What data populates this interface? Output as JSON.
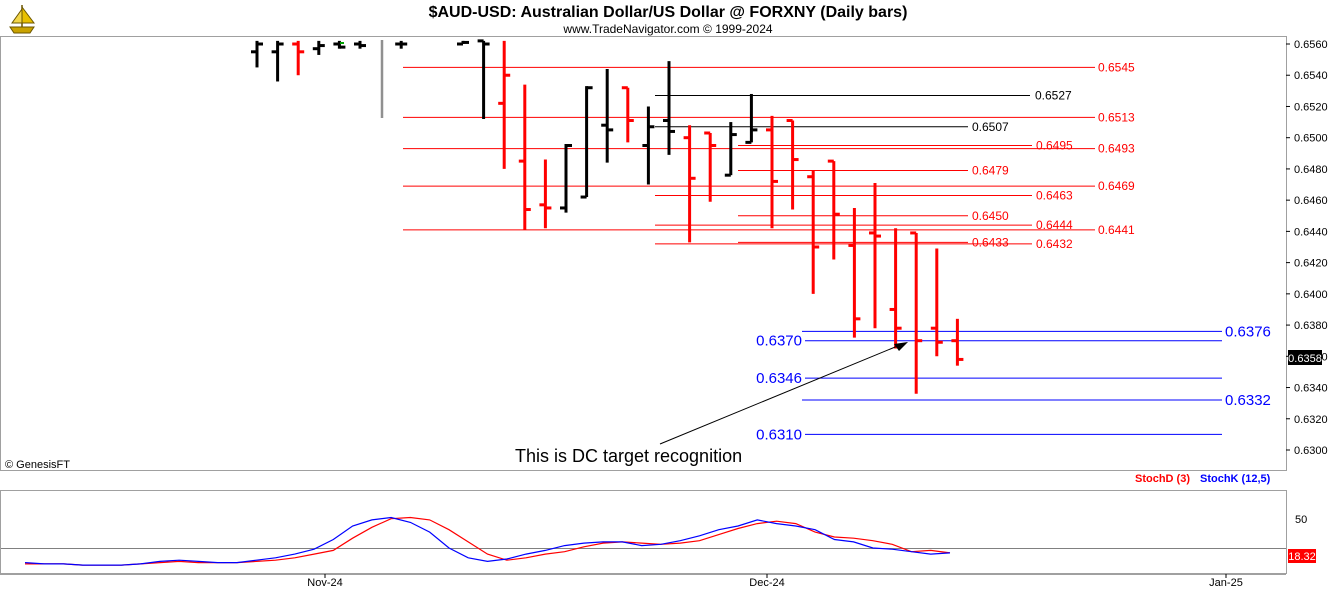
{
  "header": {
    "title": "$AUD-USD:  Australian Dollar/US Dollar @ FORXNY  (Daily bars)",
    "subtitle": "www.TradeNavigator.com © 1999-2024",
    "logo_icon": "ship-logo-icon"
  },
  "copyright": "© GenesisFT",
  "annotation": "This is DC target recognition",
  "colors": {
    "up_bar": "#000000",
    "down_bar": "#ff0000",
    "red_level": "#ff0000",
    "black_level": "#000000",
    "blue_level": "#0000ff",
    "stoch_d": "#ff0000",
    "stoch_k": "#0000ff",
    "panel_border": "#a0a0a0"
  },
  "chart_data": [
    {
      "type": "ohlc",
      "title": "$AUD-USD:  Australian Dollar/US Dollar @ FORXNY  (Daily bars)",
      "ylim": [
        0.6296,
        0.6562
      ],
      "y_ticks": [
        "0.6560",
        "0.6540",
        "0.6520",
        "0.6500",
        "0.6480",
        "0.6460",
        "0.6440",
        "0.6420",
        "0.6400",
        "0.6380",
        "0.6360",
        "0.6340",
        "0.6320",
        "0.6300"
      ],
      "x_ticks": [
        "Nov-24",
        "Dec-24",
        "Jan-25"
      ],
      "last_price": "0.6358",
      "bars": [
        {
          "i": 0,
          "o": 0.6555,
          "h": 0.6562,
          "l": 0.6545,
          "c": 0.656,
          "dir": "up"
        },
        {
          "i": 1,
          "o": 0.6555,
          "h": 0.6562,
          "l": 0.6536,
          "c": 0.656,
          "dir": "up"
        },
        {
          "i": 2,
          "o": 0.656,
          "h": 0.6562,
          "l": 0.654,
          "c": 0.6555,
          "dir": "down"
        },
        {
          "i": 3,
          "o": 0.6557,
          "h": 0.6562,
          "l": 0.6553,
          "c": 0.6559,
          "dir": "up"
        },
        {
          "i": 4,
          "o": 0.656,
          "h": 0.6562,
          "l": 0.6557,
          "c": 0.6558,
          "dir": "up"
        },
        {
          "i": 5,
          "o": 0.656,
          "h": 0.6562,
          "l": 0.6557,
          "c": 0.6559,
          "dir": "up"
        },
        {
          "i": 7,
          "o": 0.656,
          "h": 0.6562,
          "l": 0.6557,
          "c": 0.656,
          "dir": "up"
        },
        {
          "i": 10,
          "o": 0.656,
          "h": 0.6562,
          "l": 0.656,
          "c": 0.6561,
          "dir": "up"
        },
        {
          "i": 11,
          "o": 0.6562,
          "h": 0.6562,
          "l": 0.6512,
          "c": 0.656,
          "dir": "up"
        },
        {
          "i": 12,
          "o": 0.6522,
          "h": 0.6562,
          "l": 0.648,
          "c": 0.654,
          "dir": "down"
        },
        {
          "i": 13,
          "o": 0.6485,
          "h": 0.6534,
          "l": 0.6441,
          "c": 0.6454,
          "dir": "down"
        },
        {
          "i": 14,
          "o": 0.6457,
          "h": 0.6486,
          "l": 0.6442,
          "c": 0.6455,
          "dir": "down"
        },
        {
          "i": 15,
          "o": 0.6455,
          "h": 0.6496,
          "l": 0.6452,
          "c": 0.6495,
          "dir": "up"
        },
        {
          "i": 16,
          "o": 0.6462,
          "h": 0.6533,
          "l": 0.6462,
          "c": 0.6532,
          "dir": "up"
        },
        {
          "i": 17,
          "o": 0.6508,
          "h": 0.6544,
          "l": 0.6484,
          "c": 0.6505,
          "dir": "up"
        },
        {
          "i": 18,
          "o": 0.6532,
          "h": 0.6532,
          "l": 0.6497,
          "c": 0.6511,
          "dir": "down"
        },
        {
          "i": 19,
          "o": 0.6495,
          "h": 0.652,
          "l": 0.647,
          "c": 0.6507,
          "dir": "up"
        },
        {
          "i": 20,
          "o": 0.6511,
          "h": 0.6549,
          "l": 0.6489,
          "c": 0.6504,
          "dir": "up"
        },
        {
          "i": 21,
          "o": 0.65,
          "h": 0.6508,
          "l": 0.6433,
          "c": 0.6474,
          "dir": "down"
        },
        {
          "i": 22,
          "o": 0.6503,
          "h": 0.6503,
          "l": 0.6459,
          "c": 0.6495,
          "dir": "down"
        },
        {
          "i": 23,
          "o": 0.6476,
          "h": 0.651,
          "l": 0.6476,
          "c": 0.6502,
          "dir": "up"
        },
        {
          "i": 24,
          "o": 0.6497,
          "h": 0.6528,
          "l": 0.6497,
          "c": 0.6505,
          "dir": "up"
        },
        {
          "i": 25,
          "o": 0.6505,
          "h": 0.6514,
          "l": 0.6442,
          "c": 0.6472,
          "dir": "down"
        },
        {
          "i": 26,
          "o": 0.6511,
          "h": 0.6511,
          "l": 0.6454,
          "c": 0.6486,
          "dir": "down"
        },
        {
          "i": 27,
          "o": 0.6475,
          "h": 0.6479,
          "l": 0.64,
          "c": 0.643,
          "dir": "down"
        },
        {
          "i": 28,
          "o": 0.6485,
          "h": 0.6485,
          "l": 0.6422,
          "c": 0.6451,
          "dir": "down"
        },
        {
          "i": 29,
          "o": 0.6431,
          "h": 0.6455,
          "l": 0.6372,
          "c": 0.6384,
          "dir": "down"
        },
        {
          "i": 30,
          "o": 0.6439,
          "h": 0.6471,
          "l": 0.6378,
          "c": 0.6437,
          "dir": "down"
        },
        {
          "i": 31,
          "o": 0.639,
          "h": 0.6442,
          "l": 0.6365,
          "c": 0.6378,
          "dir": "down"
        },
        {
          "i": 32,
          "o": 0.6439,
          "h": 0.6439,
          "l": 0.6336,
          "c": 0.637,
          "dir": "down"
        },
        {
          "i": 33,
          "o": 0.6378,
          "h": 0.6429,
          "l": 0.636,
          "c": 0.6369,
          "dir": "down"
        },
        {
          "i": 34,
          "o": 0.637,
          "h": 0.6384,
          "l": 0.6354,
          "c": 0.6358,
          "dir": "down"
        }
      ],
      "levels": [
        {
          "value": "0.6545",
          "color": "red",
          "label_side": "far"
        },
        {
          "value": "0.6527",
          "color": "black",
          "label_side": "mid"
        },
        {
          "value": "0.6513",
          "color": "red",
          "label_side": "far"
        },
        {
          "value": "0.6507",
          "color": "black",
          "label_side": "mid"
        },
        {
          "value": "0.6495",
          "color": "red",
          "label_side": "mid"
        },
        {
          "value": "0.6493",
          "color": "red",
          "label_side": "far"
        },
        {
          "value": "0.6479",
          "color": "red",
          "label_side": "mid"
        },
        {
          "value": "0.6469",
          "color": "red",
          "label_side": "far"
        },
        {
          "value": "0.6463",
          "color": "red",
          "label_side": "mid"
        },
        {
          "value": "0.6450",
          "color": "red",
          "label_side": "mid"
        },
        {
          "value": "0.6444",
          "color": "red",
          "label_side": "mid"
        },
        {
          "value": "0.6441",
          "color": "red",
          "label_side": "far"
        },
        {
          "value": "0.6433",
          "color": "red",
          "label_side": "near"
        },
        {
          "value": "0.6432",
          "color": "red",
          "label_side": "mid"
        },
        {
          "value": "0.6376",
          "color": "blue",
          "label_side": "far"
        },
        {
          "value": "0.6370",
          "color": "blue",
          "label_side": "left"
        },
        {
          "value": "0.6346",
          "color": "blue",
          "label_side": "left"
        },
        {
          "value": "0.6332",
          "color": "blue",
          "label_side": "far"
        },
        {
          "value": "0.6310",
          "color": "blue",
          "label_side": "left"
        }
      ]
    },
    {
      "type": "line",
      "series": [
        {
          "name": "StochD (3)",
          "color": "red",
          "values": [
            7,
            7,
            7,
            6,
            6,
            6,
            7,
            8,
            9,
            8,
            8,
            8,
            9,
            10,
            12,
            15,
            18,
            28,
            37,
            44,
            45,
            43,
            35,
            25,
            15,
            10,
            12,
            15,
            17,
            21,
            24,
            25,
            24,
            23,
            24,
            26,
            31,
            36,
            40,
            42,
            40,
            33,
            29,
            28,
            26,
            23,
            17,
            18,
            16
          ]
        },
        {
          "name": "StochK (12,5)",
          "color": "blue",
          "values": [
            8,
            7,
            7,
            6,
            6,
            6,
            7,
            9,
            10,
            9,
            8,
            8,
            10,
            12,
            15,
            19,
            27,
            38,
            43,
            45,
            41,
            33,
            20,
            12,
            9,
            11,
            15,
            18,
            22,
            24,
            25,
            25,
            22,
            23,
            26,
            30,
            35,
            38,
            43,
            40,
            38,
            35,
            27,
            25,
            20,
            19,
            17,
            15,
            16
          ]
        }
      ],
      "y_ticks": [
        "50"
      ],
      "y_reference": 20,
      "last_value": "18.32"
    }
  ]
}
